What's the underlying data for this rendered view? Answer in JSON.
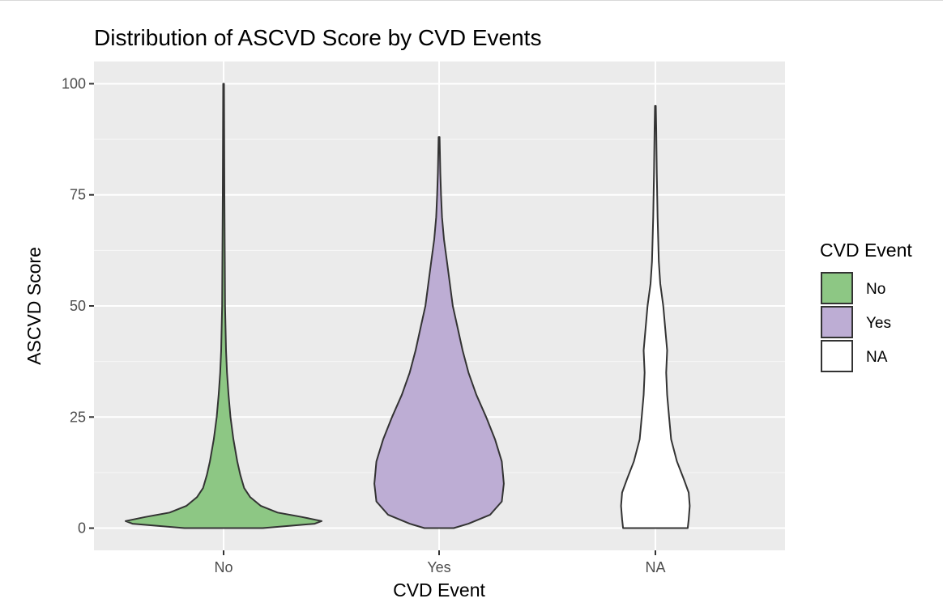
{
  "chart_data": {
    "type": "violin",
    "title": "Distribution of ASCVD Score by CVD Events",
    "xlabel": "CVD Event",
    "ylabel": "ASCVD Score",
    "categories": [
      "No",
      "Yes",
      "NA"
    ],
    "ylim": [
      -5,
      105
    ],
    "yticks": [
      0,
      25,
      50,
      75,
      100
    ],
    "grid": true,
    "legend": {
      "title": "CVD Event",
      "position": "right",
      "items": [
        {
          "label": "No",
          "color": "#8dc784"
        },
        {
          "label": "Yes",
          "color": "#bdadd4"
        },
        {
          "label": "NA",
          "color": "#ffffff"
        }
      ]
    },
    "series": [
      {
        "category": "No",
        "fill": "#8dc784",
        "range": [
          0,
          100
        ],
        "density_profile": [
          [
            0,
            0.4
          ],
          [
            1,
            0.93
          ],
          [
            1.6,
            1.0
          ],
          [
            2.5,
            0.8
          ],
          [
            3.5,
            0.55
          ],
          [
            5,
            0.38
          ],
          [
            7,
            0.27
          ],
          [
            9,
            0.21
          ],
          [
            12,
            0.17
          ],
          [
            15,
            0.14
          ],
          [
            20,
            0.1
          ],
          [
            25,
            0.07
          ],
          [
            30,
            0.05
          ],
          [
            35,
            0.035
          ],
          [
            40,
            0.025
          ],
          [
            50,
            0.015
          ],
          [
            60,
            0.012
          ],
          [
            75,
            0.008
          ],
          [
            90,
            0.006
          ],
          [
            100,
            0.004
          ]
        ]
      },
      {
        "category": "Yes",
        "fill": "#bdadd4",
        "range": [
          0,
          88
        ],
        "density_profile": [
          [
            0,
            0.15
          ],
          [
            1,
            0.3
          ],
          [
            3,
            0.52
          ],
          [
            6,
            0.64
          ],
          [
            10,
            0.66
          ],
          [
            15,
            0.64
          ],
          [
            20,
            0.57
          ],
          [
            25,
            0.48
          ],
          [
            30,
            0.38
          ],
          [
            35,
            0.3
          ],
          [
            40,
            0.24
          ],
          [
            45,
            0.19
          ],
          [
            50,
            0.14
          ],
          [
            55,
            0.11
          ],
          [
            60,
            0.08
          ],
          [
            65,
            0.05
          ],
          [
            70,
            0.03
          ],
          [
            75,
            0.02
          ],
          [
            80,
            0.012
          ],
          [
            88,
            0.005
          ]
        ]
      },
      {
        "category": "NA",
        "fill": "#ffffff",
        "range": [
          0,
          95
        ],
        "density_profile": [
          [
            0,
            0.33
          ],
          [
            2,
            0.34
          ],
          [
            5,
            0.35
          ],
          [
            8,
            0.34
          ],
          [
            11,
            0.29
          ],
          [
            15,
            0.22
          ],
          [
            20,
            0.16
          ],
          [
            25,
            0.14
          ],
          [
            30,
            0.12
          ],
          [
            35,
            0.11
          ],
          [
            40,
            0.12
          ],
          [
            45,
            0.1
          ],
          [
            50,
            0.08
          ],
          [
            55,
            0.05
          ],
          [
            60,
            0.035
          ],
          [
            70,
            0.022
          ],
          [
            80,
            0.014
          ],
          [
            90,
            0.008
          ],
          [
            95,
            0.004
          ]
        ]
      }
    ]
  }
}
